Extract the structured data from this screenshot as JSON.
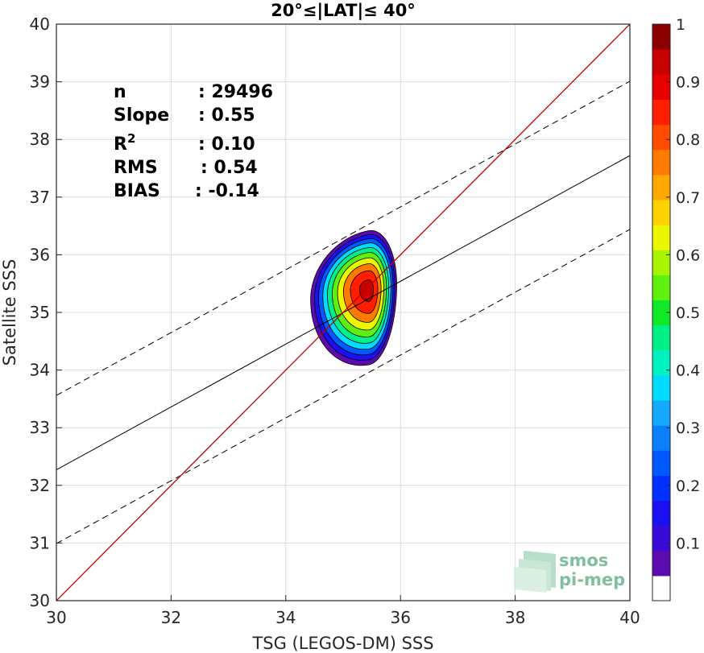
{
  "chart_data": {
    "type": "contour",
    "title": "20°≤|LAT|≤ 40°",
    "xlabel": "TSG (LEGOS-DM) SSS",
    "ylabel": "Satellite SSS",
    "xlim": [
      30,
      40
    ],
    "ylim": [
      30,
      40
    ],
    "xticks": [
      "30",
      "32",
      "34",
      "36",
      "38",
      "40"
    ],
    "yticks": [
      "30",
      "31",
      "32",
      "33",
      "34",
      "35",
      "36",
      "37",
      "38",
      "39",
      "40"
    ],
    "grid": true,
    "stats": [
      {
        "label": "n",
        "value": ": 29496"
      },
      {
        "label": "Slope",
        "value": ": 0.55"
      },
      {
        "label": "R",
        "sup": "2",
        "value": ": 0.10"
      },
      {
        "label": "RMS",
        "value": ": 0.54"
      },
      {
        "label": "BIAS",
        "value": ": -0.14"
      }
    ],
    "lines": {
      "one_to_one": {
        "x": [
          30,
          40
        ],
        "y": [
          30,
          40
        ],
        "color": "#c00000"
      },
      "regression": {
        "x": [
          30,
          40
        ],
        "y": [
          32.27,
          37.72
        ],
        "color": "#000000"
      },
      "upper_bound": {
        "x": [
          30,
          40
        ],
        "y": [
          33.56,
          39.01
        ],
        "color": "#000000",
        "dash": true
      },
      "lower_bound": {
        "x": [
          30,
          40
        ],
        "y": [
          30.99,
          36.44
        ],
        "color": "#000000",
        "dash": true
      }
    },
    "density_peak": {
      "x": 35.45,
      "y": 35.4
    },
    "contour_levels": [
      0.05,
      0.15,
      0.25,
      0.35,
      0.45,
      0.55,
      0.65,
      0.75,
      0.85,
      0.95
    ],
    "colorbar": {
      "ticks": [
        "0.1",
        "0.2",
        "0.3",
        "0.4",
        "0.5",
        "0.6",
        "0.7",
        "0.8",
        "0.9",
        "1"
      ],
      "range": [
        0,
        1
      ],
      "colors": [
        "#ffffff",
        "#5c0cae",
        "#3a0ad8",
        "#1b10f2",
        "#0030ff",
        "#0058ff",
        "#0a80ff",
        "#14a8ff",
        "#00dcff",
        "#00f2c0",
        "#00f088",
        "#10e828",
        "#60f010",
        "#a8f400",
        "#ecf600",
        "#ffd200",
        "#ffa800",
        "#ff7a00",
        "#ff4c00",
        "#ff1e00",
        "#e80000",
        "#c80000",
        "#8c0000"
      ]
    },
    "logo": {
      "line1": "smos",
      "line2": "pi-mep"
    }
  }
}
